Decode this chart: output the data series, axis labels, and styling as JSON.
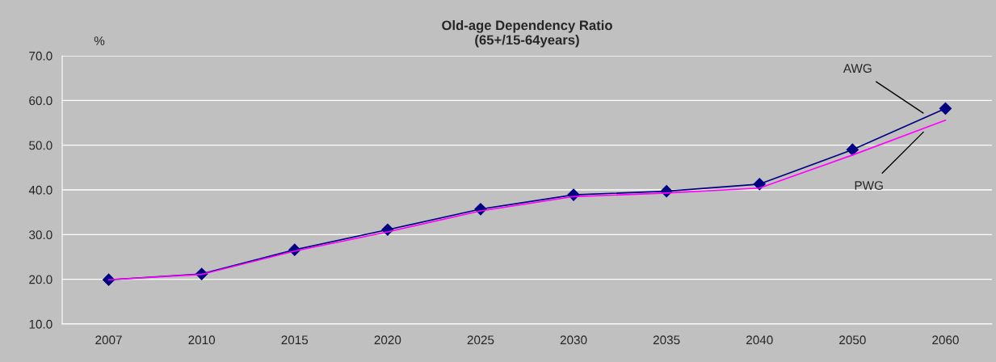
{
  "chart_data": {
    "type": "line",
    "title": "Old-age Dependency Ratio\n(65+/15-64years)",
    "ylabel": "%",
    "categories": [
      "2007",
      "2010",
      "2015",
      "2020",
      "2025",
      "2030",
      "2035",
      "2040",
      "2050",
      "2060"
    ],
    "series": [
      {
        "name": "AWG",
        "color": "#000080",
        "marker": "diamond",
        "values": [
          19.9,
          21.2,
          26.6,
          31.1,
          35.7,
          38.9,
          39.7,
          41.3,
          49.0,
          58.2
        ]
      },
      {
        "name": "PWG",
        "color": "#ff00ff",
        "marker": "none",
        "values": [
          19.9,
          21.1,
          26.3,
          30.6,
          35.3,
          38.5,
          39.3,
          40.4,
          47.8,
          55.6
        ]
      }
    ],
    "ylim": [
      10,
      70
    ],
    "yticks": [
      {
        "value": 10,
        "label": "10.0"
      },
      {
        "value": 20,
        "label": "20.0"
      },
      {
        "value": 30,
        "label": "30.0"
      },
      {
        "value": 40,
        "label": "40.0"
      },
      {
        "value": 50,
        "label": "50.0"
      },
      {
        "value": 60,
        "label": "60.0"
      },
      {
        "value": 70,
        "label": "70.0"
      }
    ],
    "grid": "y",
    "legend": false
  }
}
